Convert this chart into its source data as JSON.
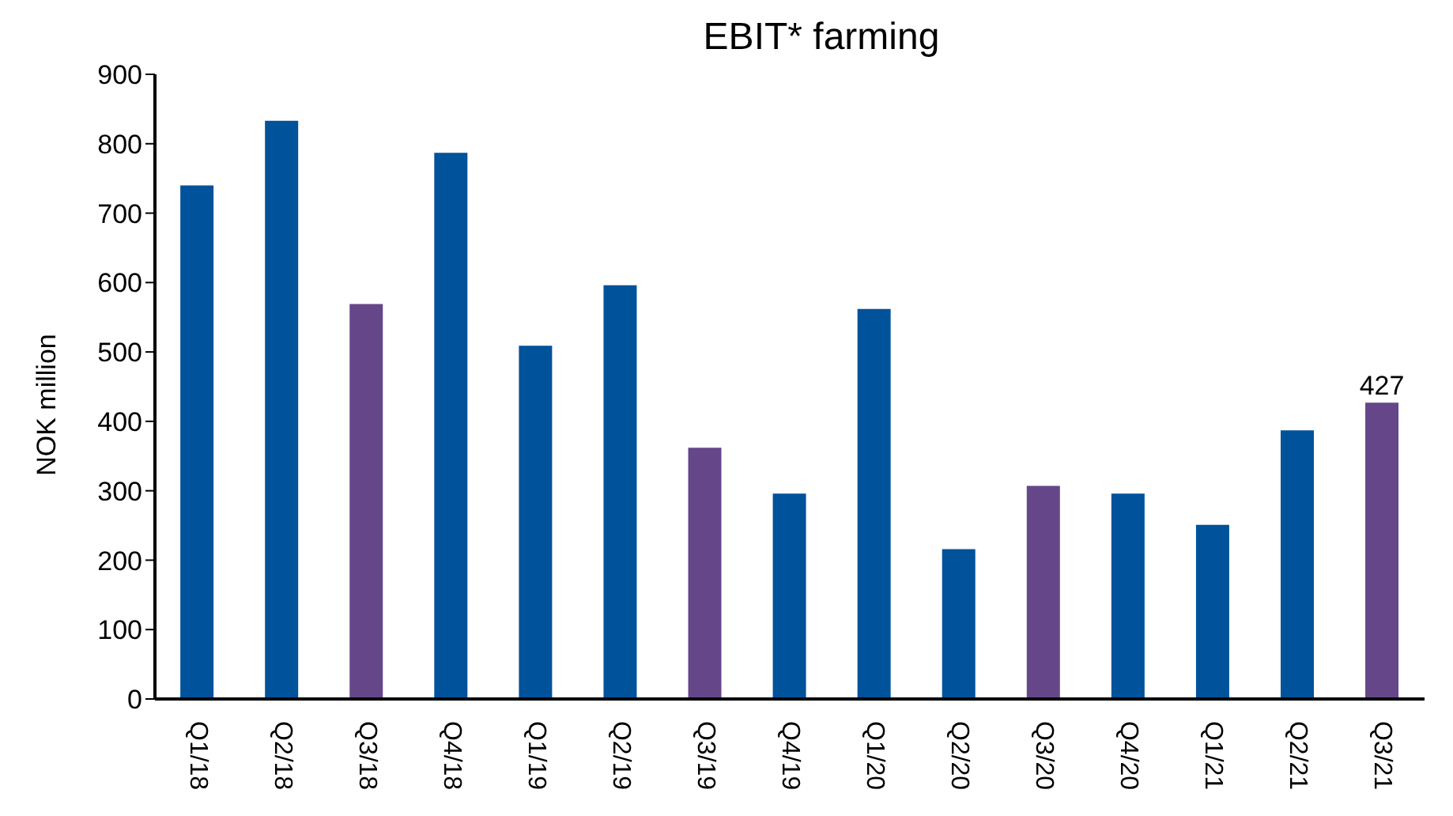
{
  "chart_data": {
    "type": "bar",
    "title": "EBIT* farming",
    "ylabel": "NOK million",
    "categories": [
      "Q1/18",
      "Q2/18",
      "Q3/18",
      "Q4/18",
      "Q1/19",
      "Q2/19",
      "Q3/19",
      "Q4/19",
      "Q1/20",
      "Q2/20",
      "Q3/20",
      "Q4/20",
      "Q1/21",
      "Q2/21",
      "Q3/21"
    ],
    "values": [
      740,
      833,
      569,
      787,
      509,
      596,
      362,
      296,
      562,
      216,
      307,
      296,
      251,
      387,
      427
    ],
    "colors": [
      "#00529b",
      "#00529b",
      "#654789",
      "#00529b",
      "#00529b",
      "#00529b",
      "#654789",
      "#00529b",
      "#00529b",
      "#00529b",
      "#654789",
      "#00529b",
      "#00529b",
      "#00529b",
      "#654789"
    ],
    "value_labels": [
      null,
      null,
      null,
      null,
      null,
      null,
      null,
      null,
      null,
      null,
      null,
      null,
      null,
      null,
      "427"
    ],
    "ylim": [
      0,
      900
    ],
    "yticks": [
      0,
      100,
      200,
      300,
      400,
      500,
      600,
      700,
      800,
      900
    ],
    "grid": false
  }
}
